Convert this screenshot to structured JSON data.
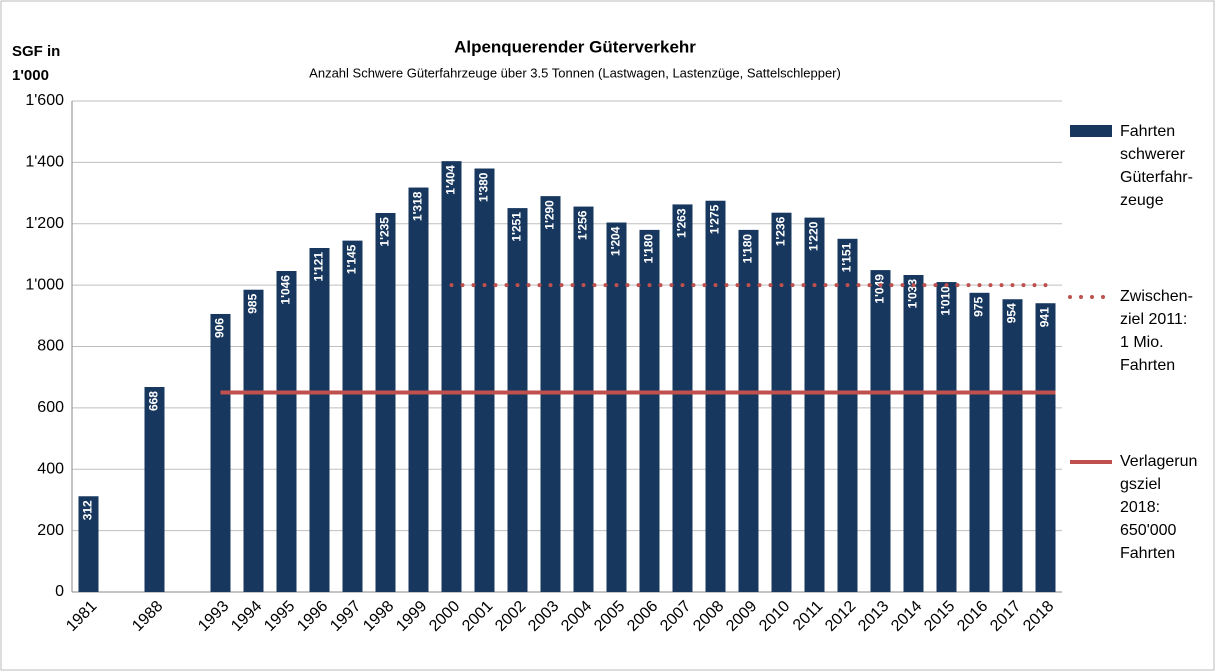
{
  "chart_data": {
    "type": "bar",
    "title": "Alpenquerender Güterverkehr",
    "subtitle": "Anzahl Schwere Güterfahrzeuge über 3.5 Tonnen (Lastwagen, Lastenzüge, Sattelschlepper)",
    "y_label": "SGF in 1'000",
    "categories": [
      "1981",
      null,
      "1988",
      null,
      "1993",
      "1994",
      "1995",
      "1996",
      "1997",
      "1998",
      "1999",
      "2000",
      "2001",
      "2002",
      "2003",
      "2004",
      "2005",
      "2006",
      "2007",
      "2008",
      "2009",
      "2010",
      "2011",
      "2012",
      "2013",
      "2014",
      "2015",
      "2016",
      "2017",
      "2018"
    ],
    "series": [
      {
        "name": "Fahrten schwerer Güterfahr-zeuge",
        "color": "#17375e",
        "values": [
          312,
          null,
          668,
          null,
          906,
          985,
          1046,
          1121,
          1145,
          1235,
          1318,
          1404,
          1380,
          1251,
          1290,
          1256,
          1204,
          1180,
          1263,
          1275,
          1180,
          1236,
          1220,
          1151,
          1049,
          1033,
          1010,
          975,
          954,
          941
        ],
        "value_labels": [
          "312",
          null,
          "668",
          null,
          "906",
          "985",
          "1'046",
          "1'121",
          "1'145",
          "1'235",
          "1'318",
          "1'404",
          "1'380",
          "1'251",
          "1'290",
          "1'256",
          "1'204",
          "1'180",
          "1'263",
          "1'275",
          "1'180",
          "1'236",
          "1'220",
          "1'151",
          "1'049",
          "1'033",
          "1'010",
          "975",
          "954",
          "941"
        ]
      }
    ],
    "reference_lines": [
      {
        "name": "Zwischen-ziel 2011: 1 Mio. Fahrten",
        "value": 1000,
        "from": "2000",
        "to": "2018",
        "color": "#c0504d",
        "style": "dotted"
      },
      {
        "name": "Verlagerungsziel 2018: 650'000 Fahrten",
        "value": 650,
        "from": "1993",
        "to": "2018",
        "color": "#c0504d",
        "style": "solid"
      }
    ],
    "ylim": [
      0,
      1600
    ],
    "yticks": [
      0,
      200,
      400,
      600,
      800,
      {
        "value": 1000,
        "label": "1'000"
      },
      {
        "value": 1200,
        "label": "1'200"
      },
      {
        "value": 1400,
        "label": "1'400"
      },
      {
        "value": 1600,
        "label": "1'600"
      }
    ],
    "grid": true,
    "legend": "right"
  }
}
